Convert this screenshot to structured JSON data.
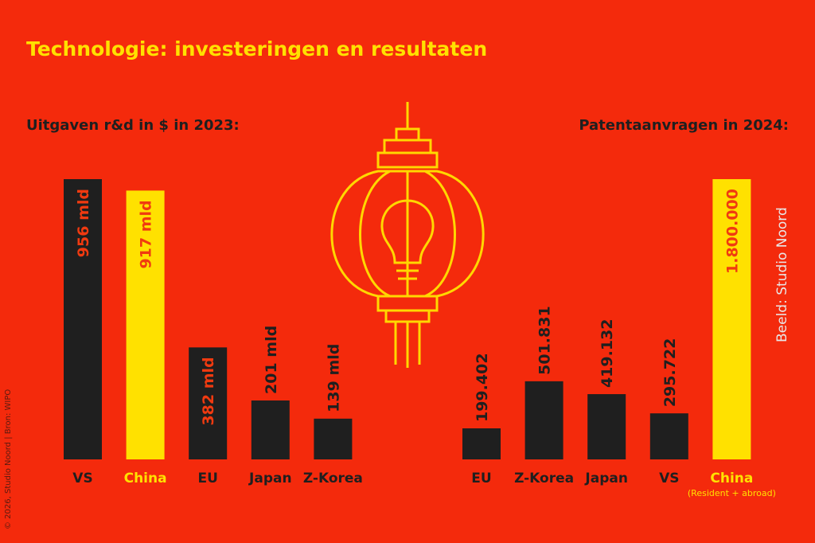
{
  "title": "Technologie: investeringen en resultaten",
  "credit": "Beeld: Studio Noord",
  "source": "© 2026, Studio Noord | Bron: WIPO",
  "chart_data": [
    {
      "type": "bar",
      "title": "Uitgaven r&d in $ in 2023:",
      "categories": [
        "VS",
        "China",
        "EU",
        "Japan",
        "Z-Korea"
      ],
      "values": [
        956,
        917,
        382,
        201,
        139
      ],
      "value_labels": [
        "956 mld",
        "917 mld",
        "382 mld",
        "201 mld",
        "139 mld"
      ],
      "colors": [
        "#1f1f1f",
        "#ffe100",
        "#1f1f1f",
        "#1f1f1f",
        "#1f1f1f"
      ]
    },
    {
      "type": "bar",
      "title": "Patentaanvragen in 2024:",
      "categories": [
        "EU",
        "Z-Korea",
        "Japan",
        "VS",
        "China"
      ],
      "values": [
        199402,
        501831,
        419132,
        295722,
        1800000
      ],
      "value_labels": [
        "199.402",
        "501.831",
        "419.132",
        "295.722",
        "1.800.000"
      ],
      "colors": [
        "#1f1f1f",
        "#1f1f1f",
        "#1f1f1f",
        "#1f1f1f",
        "#ffe100"
      ],
      "annotation": "(Resident + abroad)"
    }
  ]
}
